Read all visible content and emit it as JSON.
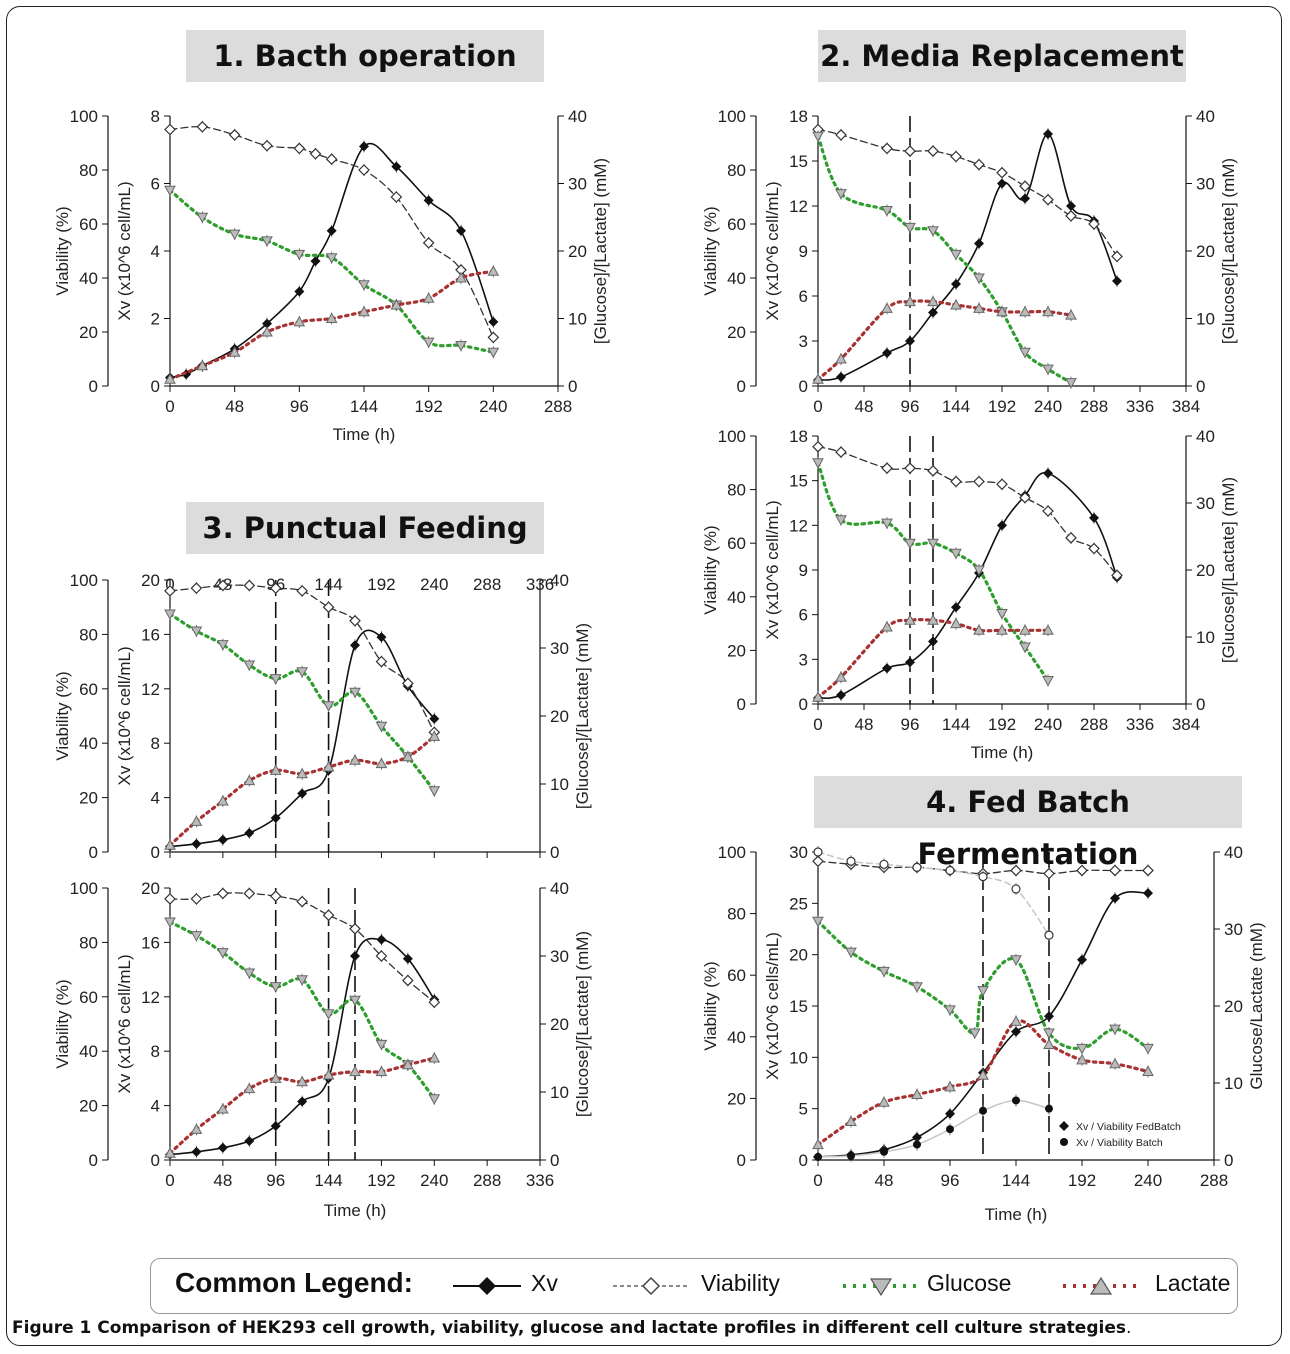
{
  "panel_titles": {
    "p1": "1. Bacth operation",
    "p2": "2. Media Replacement",
    "p3": "3. Punctual Feeding",
    "p4": "4. Fed Batch Fermentation"
  },
  "legend": {
    "title": "Common Legend:",
    "xv": "Xv",
    "viability": "Viability",
    "glucose": "Glucose",
    "lactate": "Lactate"
  },
  "caption": {
    "bold": "Figure 1 Comparison of HEK293 cell growth, viability, glucose and lactate profiles in different cell culture strategies",
    "tail": "."
  },
  "colors": {
    "xv": "#111111",
    "viability": "#333333",
    "glucose": "#2e9e2e",
    "lactate": "#a83232",
    "title_bg": "#dcdcdc"
  },
  "chart_data": [
    {
      "id": "batch",
      "type": "line",
      "xlabel": "Time (h)",
      "y1label": "Viability (%)",
      "y2label": "Xv (x10^6 cell/mL)",
      "y3label": "[Glucose]/[Lactate] (mM)",
      "xlim": [
        0,
        288
      ],
      "xticks": [
        0,
        48,
        96,
        144,
        192,
        240,
        288
      ],
      "y1lim": [
        0,
        100
      ],
      "y1ticks": [
        0,
        20,
        40,
        60,
        80,
        100
      ],
      "y2lim": [
        0,
        8
      ],
      "y2ticks": [
        0,
        2,
        4,
        6,
        8
      ],
      "y3lim": [
        0,
        40
      ],
      "y3ticks": [
        0,
        10,
        20,
        30,
        40
      ],
      "vlines": [],
      "series": [
        {
          "name": "Xv",
          "axis": "y2",
          "x": [
            0,
            12,
            24,
            48,
            72,
            96,
            108,
            120,
            144,
            168,
            192,
            216,
            240
          ],
          "y": [
            0.25,
            0.35,
            0.6,
            1.1,
            1.85,
            2.8,
            3.7,
            4.6,
            7.1,
            6.5,
            5.5,
            4.6,
            1.9
          ]
        },
        {
          "name": "Viability",
          "axis": "y1",
          "x": [
            0,
            24,
            48,
            72,
            96,
            108,
            120,
            144,
            168,
            192,
            216,
            240
          ],
          "y": [
            95,
            96,
            93,
            89,
            88,
            86,
            84,
            80,
            70,
            53,
            43,
            18
          ]
        },
        {
          "name": "Glucose",
          "axis": "y3",
          "x": [
            0,
            24,
            48,
            72,
            96,
            120,
            144,
            168,
            192,
            216,
            240
          ],
          "y": [
            29,
            25,
            22.5,
            21.5,
            19.5,
            19,
            15,
            12,
            6.5,
            6,
            5
          ]
        },
        {
          "name": "Lactate",
          "axis": "y3",
          "x": [
            0,
            24,
            48,
            72,
            96,
            120,
            144,
            168,
            192,
            216,
            240
          ],
          "y": [
            1,
            3,
            5,
            8,
            9.5,
            10,
            11,
            12,
            13,
            16,
            17
          ]
        }
      ]
    },
    {
      "id": "media1",
      "type": "line",
      "xlabel": "",
      "y1label": "Viability (%)",
      "y2label": "Xv (x10^6 cell/mL)",
      "y3label": "[Glucose]/[Lactate] (mM)",
      "xlim": [
        0,
        384
      ],
      "xticks": [
        0,
        48,
        96,
        144,
        192,
        240,
        288,
        336,
        384
      ],
      "y1lim": [
        0,
        100
      ],
      "y1ticks": [
        0,
        20,
        40,
        60,
        80,
        100
      ],
      "y2lim": [
        0,
        18
      ],
      "y2ticks": [
        0,
        3,
        6,
        9,
        12,
        15,
        18
      ],
      "y3lim": [
        0,
        40
      ],
      "y3ticks": [
        0,
        10,
        20,
        30,
        40
      ],
      "vlines": [
        96
      ],
      "series": [
        {
          "name": "Xv",
          "axis": "y2",
          "x": [
            0,
            24,
            72,
            96,
            120,
            144,
            168,
            192,
            216,
            240,
            264,
            288,
            312
          ],
          "y": [
            0.4,
            0.6,
            2.2,
            3.0,
            4.9,
            6.8,
            9.5,
            13.5,
            12.5,
            16.8,
            12.0,
            11.0,
            7.0
          ]
        },
        {
          "name": "Viability",
          "axis": "y1",
          "x": [
            0,
            24,
            72,
            96,
            120,
            144,
            168,
            192,
            216,
            240,
            264,
            288,
            312
          ],
          "y": [
            95,
            93,
            88,
            87,
            87,
            85,
            82,
            79,
            74,
            69,
            63,
            60,
            48
          ]
        },
        {
          "name": "Glucose",
          "axis": "y3",
          "x": [
            0,
            24,
            72,
            96,
            120,
            144,
            168,
            192,
            216,
            240,
            264
          ],
          "y": [
            37,
            28.5,
            26,
            23.5,
            23,
            19.5,
            16,
            11,
            5,
            2.5,
            0.5
          ]
        },
        {
          "name": "Lactate",
          "axis": "y3",
          "x": [
            0,
            24,
            72,
            96,
            120,
            144,
            168,
            192,
            216,
            240,
            264
          ],
          "y": [
            1,
            4,
            11.5,
            12.5,
            12.5,
            12,
            11.5,
            11,
            11,
            11,
            10.5
          ]
        }
      ]
    },
    {
      "id": "media2",
      "type": "line",
      "xlabel": "Time (h)",
      "y1label": "Viability (%)",
      "y2label": "Xv (x10^6 cell/mL)",
      "y3label": "[Glucose]/[Lactate] (mM)",
      "xlim": [
        0,
        384
      ],
      "xticks": [
        0,
        48,
        96,
        144,
        192,
        240,
        288,
        336,
        384
      ],
      "y1lim": [
        0,
        100
      ],
      "y1ticks": [
        0,
        20,
        40,
        60,
        80,
        100
      ],
      "y2lim": [
        0,
        18
      ],
      "y2ticks": [
        0,
        3,
        6,
        9,
        12,
        15,
        18
      ],
      "y3lim": [
        0,
        40
      ],
      "y3ticks": [
        0,
        10,
        20,
        30,
        40
      ],
      "vlines": [
        96,
        120
      ],
      "series": [
        {
          "name": "Xv",
          "axis": "y2",
          "x": [
            0,
            24,
            72,
            96,
            120,
            144,
            168,
            192,
            216,
            240,
            288,
            312
          ],
          "y": [
            0.4,
            0.6,
            2.4,
            2.8,
            4.2,
            6.5,
            8.8,
            12.0,
            14.0,
            15.5,
            12.5,
            8.5
          ]
        },
        {
          "name": "Viability",
          "axis": "y1",
          "x": [
            0,
            24,
            72,
            96,
            120,
            144,
            168,
            192,
            216,
            240,
            264,
            288,
            312
          ],
          "y": [
            96,
            94,
            88,
            88,
            87,
            83,
            83,
            82,
            77,
            72,
            62,
            58,
            48
          ]
        },
        {
          "name": "Glucose",
          "axis": "y3",
          "x": [
            0,
            24,
            72,
            96,
            120,
            144,
            168,
            192,
            216,
            240
          ],
          "y": [
            36,
            27.5,
            27,
            24,
            24,
            22.5,
            20,
            13.5,
            8.5,
            3.5
          ]
        },
        {
          "name": "Lactate",
          "axis": "y3",
          "x": [
            0,
            24,
            72,
            96,
            120,
            144,
            168,
            192,
            216,
            240
          ],
          "y": [
            1,
            4,
            11.5,
            12.5,
            12.5,
            12,
            11,
            11,
            11,
            11
          ]
        }
      ]
    },
    {
      "id": "punctual1",
      "type": "line",
      "xlabel": "",
      "y1label": "Viability (%)",
      "y2label": "Xv (x10^6 cell/mL)",
      "y3label": "[Glucose]/[Lactate] (mM)",
      "xlim": [
        0,
        336
      ],
      "xticks": [
        0,
        48,
        96,
        144,
        192,
        240,
        288,
        336
      ],
      "y1lim": [
        0,
        100
      ],
      "y1ticks": [
        0,
        20,
        40,
        60,
        80,
        100
      ],
      "y2lim": [
        0,
        20
      ],
      "y2ticks": [
        0,
        4,
        8,
        12,
        16,
        20
      ],
      "y3lim": [
        0,
        40
      ],
      "y3ticks": [
        0,
        10,
        20,
        30,
        40
      ],
      "vlines": [
        96,
        144
      ],
      "series": [
        {
          "name": "Xv",
          "axis": "y2",
          "x": [
            0,
            24,
            48,
            72,
            96,
            120,
            144,
            168,
            192,
            216,
            240
          ],
          "y": [
            0.4,
            0.6,
            0.9,
            1.4,
            2.5,
            4.3,
            6.0,
            15.2,
            15.8,
            12.2,
            9.8
          ]
        },
        {
          "name": "Viability",
          "axis": "y1",
          "x": [
            0,
            24,
            48,
            72,
            96,
            120,
            144,
            168,
            192,
            216,
            240
          ],
          "y": [
            96,
            97,
            98,
            98,
            97,
            96,
            90,
            85,
            70,
            62,
            44
          ]
        },
        {
          "name": "Glucose",
          "axis": "y3",
          "x": [
            0,
            24,
            48,
            72,
            96,
            120,
            144,
            168,
            192,
            216,
            240
          ],
          "y": [
            35,
            32.5,
            30.5,
            27.5,
            25.5,
            26.5,
            21.5,
            23.5,
            18.5,
            14,
            9
          ]
        },
        {
          "name": "Lactate",
          "axis": "y3",
          "x": [
            0,
            24,
            48,
            72,
            96,
            120,
            144,
            168,
            192,
            216,
            240
          ],
          "y": [
            1,
            4.5,
            7.5,
            10.5,
            12,
            11.5,
            12.5,
            13.5,
            13,
            14,
            17
          ]
        }
      ]
    },
    {
      "id": "punctual2",
      "type": "line",
      "xlabel": "Time (h)",
      "y1label": "Viability (%)",
      "y2label": "Xv (x10^6 cell/mL)",
      "y3label": "[Glucose]/[Lactate] (mM)",
      "xlim": [
        0,
        336
      ],
      "xticks": [
        0,
        48,
        96,
        144,
        192,
        240,
        288,
        336
      ],
      "y1lim": [
        0,
        100
      ],
      "y1ticks": [
        0,
        20,
        40,
        60,
        80,
        100
      ],
      "y2lim": [
        0,
        20
      ],
      "y2ticks": [
        0,
        4,
        8,
        12,
        16,
        20
      ],
      "y3lim": [
        0,
        40
      ],
      "y3ticks": [
        0,
        10,
        20,
        30,
        40
      ],
      "vlines": [
        96,
        144,
        168
      ],
      "series": [
        {
          "name": "Xv",
          "axis": "y2",
          "x": [
            0,
            24,
            48,
            72,
            96,
            120,
            144,
            168,
            192,
            216,
            240
          ],
          "y": [
            0.4,
            0.6,
            0.9,
            1.4,
            2.5,
            4.3,
            6.0,
            15.0,
            16.2,
            14.8,
            11.8
          ]
        },
        {
          "name": "Viability",
          "axis": "y1",
          "x": [
            0,
            24,
            48,
            72,
            96,
            120,
            144,
            168,
            192,
            216,
            240
          ],
          "y": [
            96,
            96,
            98,
            98,
            97,
            95,
            90,
            85,
            75,
            66,
            58
          ]
        },
        {
          "name": "Glucose",
          "axis": "y3",
          "x": [
            0,
            24,
            48,
            72,
            96,
            120,
            144,
            168,
            192,
            216,
            240
          ],
          "y": [
            35,
            33,
            30.5,
            27.5,
            25.5,
            26.5,
            21.5,
            23.5,
            17,
            14,
            9
          ]
        },
        {
          "name": "Lactate",
          "axis": "y3",
          "x": [
            0,
            24,
            48,
            72,
            96,
            120,
            144,
            168,
            192,
            216,
            240
          ],
          "y": [
            1,
            4.5,
            7.5,
            10.5,
            12,
            11.5,
            12.5,
            13,
            13,
            14,
            15
          ]
        }
      ]
    },
    {
      "id": "fedbatch",
      "type": "line",
      "xlabel": "Time (h)",
      "y1label": "Viability (%)",
      "y2label": "Xv (x10^6 cells/mL)",
      "y3label": "Glucose/Lactate (mM)",
      "xlim": [
        0,
        288
      ],
      "xticks": [
        0,
        48,
        96,
        144,
        192,
        240,
        288
      ],
      "y1lim": [
        0,
        100
      ],
      "y1ticks": [
        0,
        20,
        40,
        60,
        80,
        100
      ],
      "y2lim": [
        0,
        30
      ],
      "y2ticks": [
        0,
        5,
        10,
        15,
        20,
        25,
        30
      ],
      "y3lim": [
        0,
        40
      ],
      "y3ticks": [
        0,
        10,
        20,
        30,
        40
      ],
      "vlines": [
        120,
        168
      ],
      "inner_legend": [
        "Xv / Viability FedBatch",
        "Xv / Viability Batch"
      ],
      "series": [
        {
          "name": "Xv FedBatch",
          "axis": "y2",
          "x": [
            0,
            24,
            48,
            72,
            96,
            120,
            144,
            168,
            192,
            216,
            240
          ],
          "y": [
            0.3,
            0.5,
            1.0,
            2.2,
            4.5,
            8.5,
            12.5,
            14.0,
            19.5,
            25.5,
            26.0
          ]
        },
        {
          "name": "Viability FedBatch",
          "axis": "y1",
          "x": [
            0,
            24,
            48,
            72,
            96,
            120,
            144,
            168,
            192,
            216,
            240
          ],
          "y": [
            97,
            96,
            95,
            95,
            94,
            93,
            94,
            93,
            94,
            94,
            94
          ]
        },
        {
          "name": "Xv Batch",
          "axis": "y2",
          "x": [
            0,
            24,
            48,
            72,
            96,
            120,
            144,
            168
          ],
          "y": [
            0.3,
            0.4,
            0.8,
            1.5,
            3.0,
            4.8,
            5.8,
            5.0
          ]
        },
        {
          "name": "Viability Batch",
          "axis": "y1",
          "x": [
            0,
            24,
            48,
            72,
            96,
            120,
            144,
            168
          ],
          "y": [
            100,
            97,
            96,
            95,
            94,
            92,
            88,
            73
          ]
        },
        {
          "name": "Glucose",
          "axis": "y3",
          "x": [
            0,
            24,
            48,
            72,
            96,
            114,
            120,
            144,
            168,
            192,
            216,
            240
          ],
          "y": [
            31,
            27,
            24.5,
            22.5,
            19.5,
            16.5,
            22,
            26,
            16.5,
            14.5,
            17,
            14.5
          ]
        },
        {
          "name": "Lactate",
          "axis": "y3",
          "x": [
            0,
            24,
            48,
            72,
            96,
            120,
            144,
            168,
            192,
            216,
            240
          ],
          "y": [
            2,
            5,
            7.5,
            8.5,
            9.5,
            11,
            18,
            15,
            13,
            12.5,
            11.5
          ]
        }
      ]
    }
  ]
}
